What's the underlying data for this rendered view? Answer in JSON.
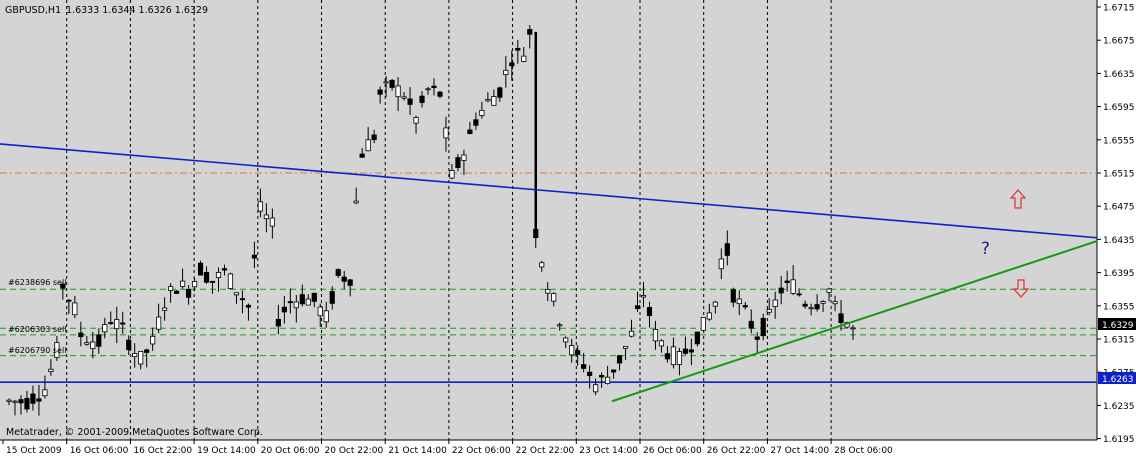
{
  "header": {
    "symbol": "GBPUSD,H1",
    "ohlc": "1.6333 1.6344 1.6326 1.6329"
  },
  "footer": {
    "copyright": "Metatrader, © 2001-2009 MetaQuotes Software Corp."
  },
  "colors": {
    "background": "#d4d4d4",
    "axis_background": "#ffffff",
    "grid": "#000000",
    "candles": "#000000",
    "trendline_upper": "#0b22c8",
    "trendline_lower": "#139a13",
    "support_line": "#0b22c8",
    "resistance_dashed": "#e0704a",
    "order_lines": "#1d9a1d",
    "arrows": "#e03030",
    "question_mark": "#1f1f8c",
    "price_label_bg": "#000000",
    "support_label_bg": "#0b22c8"
  },
  "annotations": {
    "order_1": "#6238696 sell",
    "order_2": "#6206303 sell",
    "order_3": "#6206790 sell",
    "question": "?"
  },
  "current_price_label": "1.6329",
  "support_price_label": "1.6263",
  "chart_data": {
    "type": "candlestick",
    "title": "GBPUSD,H1",
    "ylim": [
      1.6195,
      1.6715
    ],
    "y_ticks": [
      "1.6715",
      "1.6675",
      "1.6635",
      "1.6595",
      "1.6555",
      "1.6515",
      "1.6475",
      "1.6435",
      "1.6395",
      "1.6355",
      "1.6315",
      "1.6275",
      "1.6235",
      "1.6195"
    ],
    "x_ticks": [
      "15 Oct 2009",
      "16 Oct 06:00",
      "16 Oct 22:00",
      "19 Oct 14:00",
      "20 Oct 06:00",
      "20 Oct 22:00",
      "21 Oct 14:00",
      "22 Oct 06:00",
      "22 Oct 22:00",
      "23 Oct 14:00",
      "26 Oct 06:00",
      "26 Oct 22:00",
      "27 Oct 14:00",
      "28 Oct 06:00"
    ],
    "current_price": 1.6329,
    "support_level": 1.6263,
    "resistance_level": 1.6515,
    "order_levels": [
      1.6375,
      1.6328,
      1.632,
      1.6295
    ],
    "trendline_upper": {
      "start": 1.655,
      "end": 1.6437
    },
    "trendline_lower": {
      "start": 1.624,
      "end": 1.6433
    },
    "price_path": [
      [
        0,
        1.624
      ],
      [
        3,
        1.624
      ],
      [
        6,
        1.6255
      ],
      [
        8,
        1.63
      ],
      [
        9,
        1.638
      ],
      [
        11,
        1.635
      ],
      [
        12,
        1.632
      ],
      [
        15,
        1.631
      ],
      [
        17,
        1.634
      ],
      [
        19,
        1.6325
      ],
      [
        21,
        1.63
      ],
      [
        22,
        1.629
      ],
      [
        24,
        1.631
      ],
      [
        26,
        1.636
      ],
      [
        28,
        1.638
      ],
      [
        30,
        1.6375
      ],
      [
        32,
        1.64
      ],
      [
        34,
        1.6385
      ],
      [
        36,
        1.6395
      ],
      [
        38,
        1.6375
      ],
      [
        40,
        1.6355
      ],
      [
        42,
        1.647
      ],
      [
        44,
        1.645
      ],
      [
        45,
        1.634
      ],
      [
        47,
        1.636
      ],
      [
        49,
        1.6365
      ],
      [
        51,
        1.636
      ],
      [
        53,
        1.634
      ],
      [
        55,
        1.639
      ],
      [
        57,
        1.639
      ],
      [
        58,
        1.648
      ],
      [
        59,
        1.654
      ],
      [
        61,
        1.656
      ],
      [
        62,
        1.661
      ],
      [
        64,
        1.662
      ],
      [
        66,
        1.661
      ],
      [
        68,
        1.658
      ],
      [
        70,
        1.6615
      ],
      [
        72,
        1.661
      ],
      [
        74,
        1.651
      ],
      [
        76,
        1.654
      ],
      [
        78,
        1.658
      ],
      [
        80,
        1.66
      ],
      [
        82,
        1.6615
      ],
      [
        84,
        1.6655
      ],
      [
        86,
        1.666
      ],
      [
        87,
        1.6685
      ],
      [
        88,
        1.6445
      ],
      [
        90,
        1.638
      ],
      [
        92,
        1.634
      ],
      [
        94,
        1.63
      ],
      [
        96,
        1.6285
      ],
      [
        98,
        1.626
      ],
      [
        100,
        1.627
      ],
      [
        102,
        1.629
      ],
      [
        104,
        1.632
      ],
      [
        106,
        1.637
      ],
      [
        108,
        1.632
      ],
      [
        110,
        1.63
      ],
      [
        112,
        1.629
      ],
      [
        114,
        1.631
      ],
      [
        116,
        1.633
      ],
      [
        118,
        1.636
      ],
      [
        119,
        1.641
      ],
      [
        120,
        1.642
      ],
      [
        121,
        1.637
      ],
      [
        123,
        1.6345
      ],
      [
        125,
        1.632
      ],
      [
        127,
        1.634
      ],
      [
        129,
        1.6375
      ],
      [
        131,
        1.638
      ],
      [
        133,
        1.636
      ],
      [
        135,
        1.636
      ],
      [
        137,
        1.6375
      ],
      [
        138,
        1.635
      ],
      [
        140,
        1.6335
      ],
      [
        141,
        1.6325
      ]
    ]
  }
}
